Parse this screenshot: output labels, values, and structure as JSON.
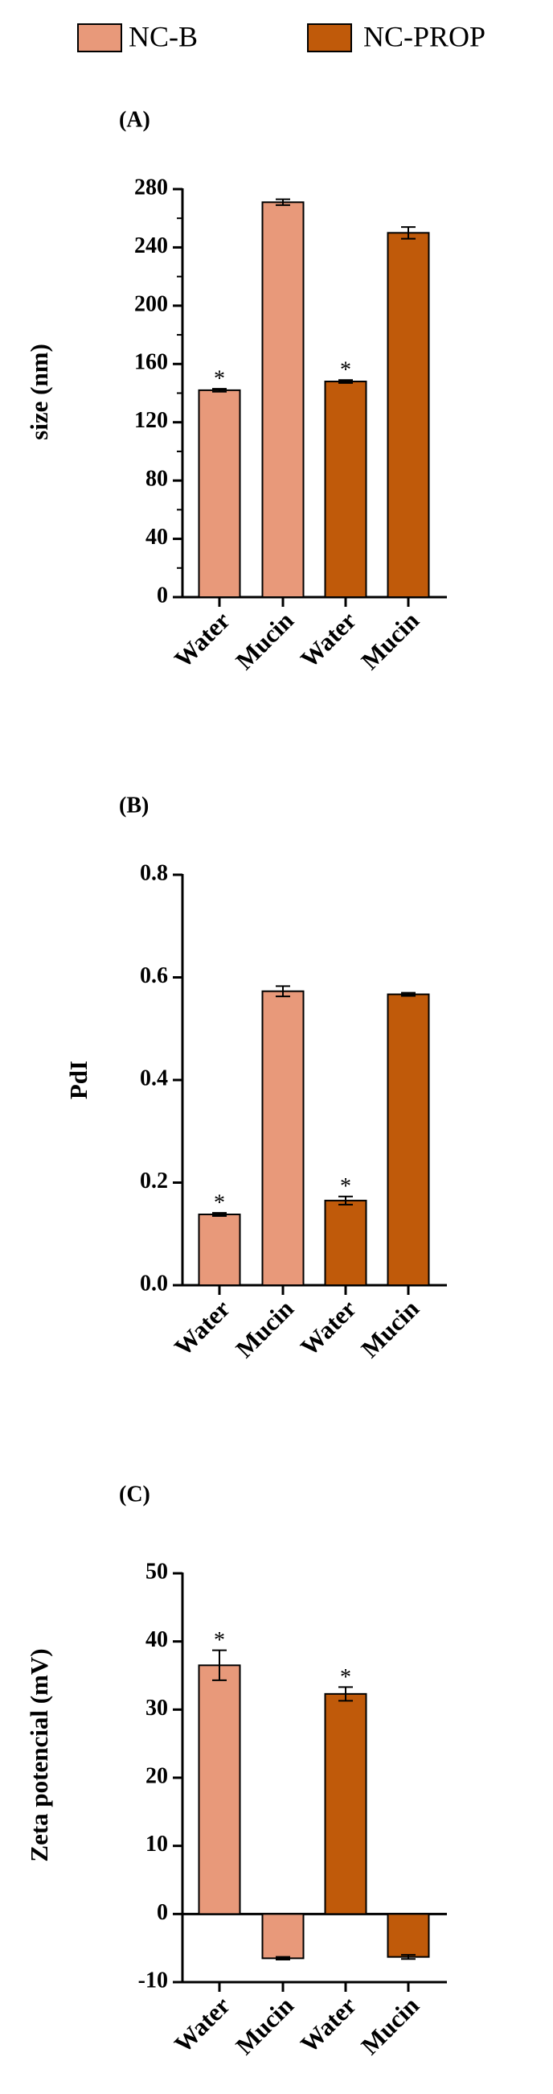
{
  "legend": [
    {
      "name": "NC-B",
      "color": "#E8997A"
    },
    {
      "name": "NC-PROP",
      "color": "#C05A0A"
    }
  ],
  "chart_data": [
    {
      "type": "bar",
      "panel": "(A)",
      "ylabel": "size (nm)",
      "categories": [
        "Water",
        "Mucin",
        "Water",
        "Mucin"
      ],
      "values": [
        142,
        271,
        148,
        250
      ],
      "errors": [
        1,
        2,
        1,
        4
      ],
      "colors": [
        "#E8997A",
        "#E8997A",
        "#C05A0A",
        "#C05A0A"
      ],
      "annotations": [
        {
          "text": "*",
          "index": 0
        },
        {
          "text": "*",
          "index": 2
        }
      ],
      "ylim": [
        0,
        280
      ],
      "yticks": [
        0,
        40,
        80,
        120,
        160,
        200,
        240,
        280
      ],
      "yminorticks": [
        20,
        60,
        100,
        140,
        180,
        220,
        260
      ]
    },
    {
      "type": "bar",
      "panel": "(B)",
      "ylabel": "PdI",
      "categories": [
        "Water",
        "Mucin",
        "Water",
        "Mucin"
      ],
      "values": [
        0.138,
        0.573,
        0.165,
        0.567
      ],
      "errors": [
        0.003,
        0.01,
        0.008,
        0.003
      ],
      "colors": [
        "#E8997A",
        "#E8997A",
        "#C05A0A",
        "#C05A0A"
      ],
      "annotations": [
        {
          "text": "*",
          "index": 0
        },
        {
          "text": "*",
          "index": 2
        }
      ],
      "ylim": [
        0,
        0.8
      ],
      "yticks": [
        {
          "value": 0,
          "label": "0.0"
        },
        0.2,
        0.4,
        0.6,
        0.8
      ]
    },
    {
      "type": "bar",
      "panel": "(C)",
      "ylabel": "Zeta potencial (mV)",
      "categories": [
        "Water",
        "Mucin",
        "Water",
        "Mucin"
      ],
      "values": [
        36.5,
        -6.5,
        32.3,
        -6.3
      ],
      "errors": [
        2.2,
        0.2,
        1.0,
        0.3
      ],
      "colors": [
        "#E8997A",
        "#E8997A",
        "#C05A0A",
        "#C05A0A"
      ],
      "annotations": [
        {
          "text": "*",
          "index": 0
        },
        {
          "text": "*",
          "index": 2
        }
      ],
      "ylim": [
        -10,
        50
      ],
      "yticks": [
        -10,
        0,
        10,
        20,
        30,
        40,
        50
      ]
    }
  ]
}
